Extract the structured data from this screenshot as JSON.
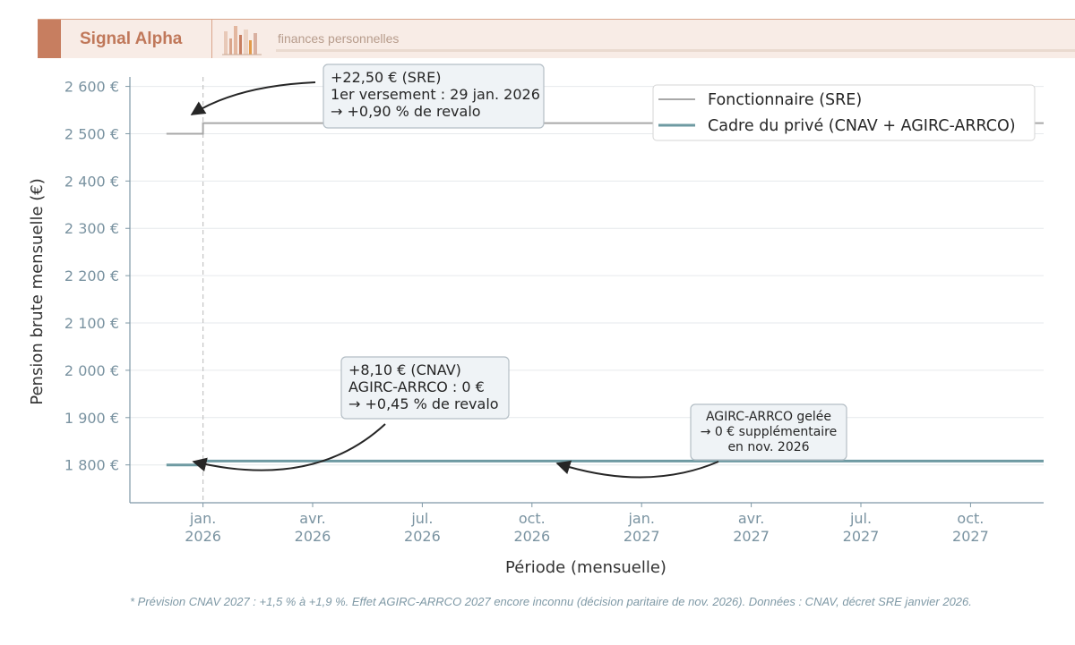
{
  "header": {
    "brand": "Signal Alpha",
    "tagline": "finances personnelles",
    "logo_icon": "bar-cluster-logo-icon",
    "colors": {
      "accent": "#c77e60",
      "banner_bg": "#f8ece6"
    }
  },
  "chart_data": {
    "type": "line",
    "title": "",
    "xlabel": "Période (mensuelle)",
    "ylabel": "Pension brute mensuelle (€)",
    "ylim": [
      1720,
      2620
    ],
    "yticks": [
      1800,
      1900,
      2000,
      2100,
      2200,
      2300,
      2400,
      2500,
      2600
    ],
    "ytick_labels": [
      "1 800 €",
      "1 900 €",
      "2 000 €",
      "2 100 €",
      "2 200 €",
      "2 300 €",
      "2 400 €",
      "2 500 €",
      "2 600 €"
    ],
    "x_range": [
      "2025-11",
      "2027-12"
    ],
    "xticks": [
      "2026-01",
      "2026-04",
      "2026-07",
      "2026-10",
      "2027-01",
      "2027-04",
      "2027-07",
      "2027-10"
    ],
    "xtick_labels": [
      [
        "jan.",
        "2026"
      ],
      [
        "avr.",
        "2026"
      ],
      [
        "jul.",
        "2026"
      ],
      [
        "oct.",
        "2026"
      ],
      [
        "jan.",
        "2027"
      ],
      [
        "avr.",
        "2027"
      ],
      [
        "jul.",
        "2027"
      ],
      [
        "oct.",
        "2027"
      ]
    ],
    "grid": "horizontal",
    "legend_position": "top-right",
    "reference_line": "2026-01",
    "series": [
      {
        "name": "Fonctionnaire (SRE)",
        "color": "#a8a8a8",
        "points": [
          [
            "2025-12",
            2500
          ],
          [
            "2026-01",
            2522.5
          ],
          [
            "2027-12",
            2522.5
          ]
        ]
      },
      {
        "name": "Cadre du privé (CNAV + AGIRC-ARRCO)",
        "color": "#6e9aa2",
        "points": [
          [
            "2025-12",
            1800
          ],
          [
            "2026-01",
            1808.1
          ],
          [
            "2027-12",
            1808.1
          ]
        ]
      }
    ],
    "annotations": [
      {
        "lines": [
          "+22,50 € (SRE)",
          "1er versement : 29 jan. 2026",
          "→ +0,90 % de revalo"
        ],
        "target": [
          "2026-01",
          2522.5
        ]
      },
      {
        "lines": [
          "+8,10 € (CNAV)",
          "AGIRC-ARRCO : 0 €",
          "→ +0,45 % de revalo"
        ],
        "target": [
          "2026-01",
          1808.1
        ]
      },
      {
        "lines": [
          "AGIRC-ARRCO gelée",
          "→ 0 € supplémentaire",
          "en nov. 2026"
        ],
        "target": [
          "2026-11",
          1808.1
        ]
      }
    ]
  },
  "footnote": "* Prévision CNAV 2027 : +1,5 % à +1,9 %. Effet AGIRC-ARRCO 2027 encore inconnu (décision paritaire de nov. 2026). Données : CNAV, décret SRE janvier 2026."
}
